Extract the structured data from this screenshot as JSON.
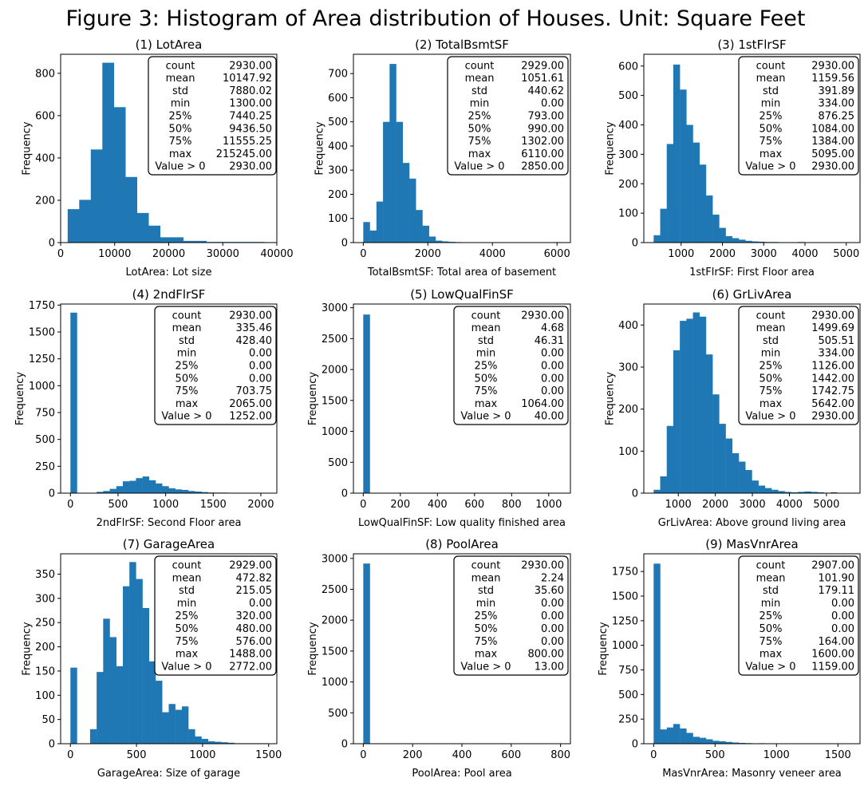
{
  "figure_title": "Figure 3: Histogram of Area distribution of Houses. Unit: Square Feet",
  "chart_data": [
    {
      "type": "bar",
      "title": "(1) LotArea",
      "xlabel": "LotArea: Lot size",
      "ylabel": "Frequency",
      "xlim": [
        0,
        40000
      ],
      "ylim": [
        0,
        890
      ],
      "xticks": [
        0,
        10000,
        20000,
        30000,
        40000
      ],
      "yticks": [
        0,
        200,
        400,
        600,
        800
      ],
      "bin_start": 1300,
      "bin_width": 2140,
      "values": [
        158,
        202,
        440,
        850,
        640,
        310,
        140,
        80,
        25,
        25,
        8,
        8,
        3,
        3,
        3,
        3,
        3,
        2
      ],
      "stats": {
        "labels": [
          "count",
          "mean",
          "std",
          "min",
          "25%",
          "50%",
          "75%",
          "max",
          "Value > 0"
        ],
        "values": [
          "2930.00",
          "10147.92",
          "7880.02",
          "1300.00",
          "7440.25",
          "9436.50",
          "11555.25",
          "215245.00",
          "2930.00"
        ]
      }
    },
    {
      "type": "bar",
      "title": "(2) TotalBsmtSF",
      "xlabel": "TotalBsmtSF: Total area of basement",
      "ylabel": "Frequency",
      "xlim": [
        -305,
        6415
      ],
      "ylim": [
        0,
        780
      ],
      "xticks": [
        0,
        2000,
        4000,
        6000
      ],
      "yticks": [
        0,
        100,
        200,
        300,
        400,
        500,
        600,
        700
      ],
      "bin_start": 0,
      "bin_width": 203.67,
      "values": [
        85,
        50,
        170,
        500,
        740,
        500,
        330,
        265,
        135,
        70,
        25,
        8,
        5,
        3,
        2,
        1,
        1,
        0,
        0,
        0,
        0,
        0,
        0,
        0,
        0,
        1,
        0,
        0,
        0,
        2
      ],
      "stats": {
        "labels": [
          "count",
          "mean",
          "std",
          "min",
          "25%",
          "50%",
          "75%",
          "max",
          "Value > 0"
        ],
        "values": [
          "2929.00",
          "1051.61",
          "440.62",
          "0.00",
          "793.00",
          "990.00",
          "1302.00",
          "6110.00",
          "2850.00"
        ]
      }
    },
    {
      "type": "bar",
      "title": "(3) 1stFlrSF",
      "xlabel": "1stFlrSF: First Floor area",
      "ylabel": "Frequency",
      "xlim": [
        96,
        5333
      ],
      "ylim": [
        0,
        640
      ],
      "xticks": [
        1000,
        2000,
        3000,
        4000,
        5000
      ],
      "yticks": [
        0,
        100,
        200,
        300,
        400,
        500,
        600
      ],
      "bin_start": 334,
      "bin_width": 158.7,
      "values": [
        25,
        115,
        335,
        605,
        520,
        400,
        340,
        265,
        160,
        95,
        50,
        22,
        15,
        10,
        6,
        4,
        3,
        2,
        2,
        1,
        1,
        0,
        2,
        1,
        0,
        0,
        1,
        0,
        0,
        1
      ],
      "stats": {
        "labels": [
          "count",
          "mean",
          "std",
          "min",
          "25%",
          "50%",
          "75%",
          "max",
          "Value > 0"
        ],
        "values": [
          "2930.00",
          "1159.56",
          "391.89",
          "334.00",
          "876.25",
          "1084.00",
          "1384.00",
          "5095.00",
          "2930.00"
        ]
      }
    },
    {
      "type": "bar",
      "title": "(4) 2ndFlrSF",
      "xlabel": "2ndFlrSF: Second Floor area",
      "ylabel": "Frequency",
      "xlim": [
        -103,
        2168
      ],
      "ylim": [
        0,
        1760
      ],
      "xticks": [
        0,
        500,
        1000,
        1500,
        2000
      ],
      "yticks": [
        0,
        250,
        500,
        750,
        1000,
        1250,
        1500,
        1750
      ],
      "bin_start": 0,
      "bin_width": 68.83,
      "values": [
        1680,
        0,
        0,
        3,
        12,
        20,
        40,
        65,
        110,
        115,
        140,
        155,
        120,
        90,
        65,
        45,
        35,
        30,
        20,
        15,
        10,
        6,
        5,
        5,
        4,
        2,
        2,
        2,
        1,
        1
      ],
      "stats": {
        "labels": [
          "count",
          "mean",
          "std",
          "min",
          "25%",
          "50%",
          "75%",
          "max",
          "Value > 0"
        ],
        "values": [
          "2930.00",
          "335.46",
          "428.40",
          "0.00",
          "0.00",
          "0.00",
          "703.75",
          "2065.00",
          "1252.00"
        ]
      }
    },
    {
      "type": "bar",
      "title": "(5) LowQualFinSF",
      "xlabel": "LowQualFinSF: Low quality finished area",
      "ylabel": "Frequency",
      "xlim": [
        -53,
        1117
      ],
      "ylim": [
        0,
        3060
      ],
      "xticks": [
        0,
        200,
        400,
        600,
        800,
        1000
      ],
      "yticks": [
        0,
        500,
        1000,
        1500,
        2000,
        2500,
        3000
      ],
      "bin_start": 0,
      "bin_width": 35.47,
      "values": [
        2890,
        0,
        0,
        3,
        5,
        2,
        1,
        0,
        0,
        0,
        3,
        5,
        4,
        5,
        4,
        2,
        0,
        0,
        0,
        0,
        0,
        0,
        0,
        1,
        0,
        0,
        0,
        0,
        0,
        1
      ],
      "stats": {
        "labels": [
          "count",
          "mean",
          "std",
          "min",
          "25%",
          "50%",
          "75%",
          "max",
          "Value > 0"
        ],
        "values": [
          "2930.00",
          "4.68",
          "46.31",
          "0.00",
          "0.00",
          "0.00",
          "0.00",
          "1064.00",
          "40.00"
        ]
      }
    },
    {
      "type": "bar",
      "title": "(6) GrLivArea",
      "xlabel": "GrLivArea: Above ground living area",
      "ylabel": "Frequency",
      "xlim": [
        69,
        5907
      ],
      "ylim": [
        0,
        450
      ],
      "xticks": [
        1000,
        2000,
        3000,
        4000,
        5000
      ],
      "yticks": [
        0,
        100,
        200,
        300,
        400
      ],
      "bin_start": 334,
      "bin_width": 176.93,
      "values": [
        8,
        40,
        160,
        340,
        410,
        415,
        430,
        420,
        330,
        235,
        165,
        130,
        95,
        75,
        55,
        30,
        18,
        12,
        8,
        5,
        3,
        2,
        3,
        4,
        3,
        2,
        1,
        2,
        0,
        1
      ],
      "stats": {
        "labels": [
          "count",
          "mean",
          "std",
          "min",
          "25%",
          "50%",
          "75%",
          "max",
          "Value > 0"
        ],
        "values": [
          "2930.00",
          "1499.69",
          "505.51",
          "334.00",
          "1126.00",
          "1442.00",
          "1742.75",
          "5642.00",
          "2930.00"
        ]
      }
    },
    {
      "type": "bar",
      "title": "(7) GarageArea",
      "xlabel": "GarageArea: Size of garage",
      "ylabel": "Frequency",
      "xlim": [
        -74,
        1562
      ],
      "ylim": [
        0,
        392
      ],
      "xticks": [
        0,
        500,
        1000,
        1500
      ],
      "yticks": [
        0,
        50,
        100,
        150,
        200,
        250,
        300,
        350
      ],
      "bin_start": 0,
      "bin_width": 49.6,
      "values": [
        157,
        0,
        0,
        30,
        148,
        258,
        220,
        160,
        325,
        375,
        340,
        280,
        170,
        130,
        65,
        82,
        70,
        77,
        30,
        15,
        10,
        5,
        4,
        3,
        2,
        1,
        1,
        1,
        1,
        1
      ],
      "stats": {
        "labels": [
          "count",
          "mean",
          "std",
          "min",
          "25%",
          "50%",
          "75%",
          "max",
          "Value > 0"
        ],
        "values": [
          "2929.00",
          "472.82",
          "215.05",
          "0.00",
          "320.00",
          "480.00",
          "576.00",
          "1488.00",
          "2772.00"
        ]
      }
    },
    {
      "type": "bar",
      "title": "(8) PoolArea",
      "xlabel": "PoolArea: Pool area",
      "ylabel": "Frequency",
      "xlim": [
        -40,
        840
      ],
      "ylim": [
        0,
        3075
      ],
      "xticks": [
        0,
        200,
        400,
        600,
        800
      ],
      "yticks": [
        0,
        500,
        1000,
        1500,
        2000,
        2500,
        3000
      ],
      "bin_start": 0,
      "bin_width": 26.67,
      "values": [
        2917,
        0,
        0,
        0,
        0,
        0,
        0,
        0,
        0,
        0,
        0,
        0,
        0,
        0,
        1,
        2,
        1,
        1,
        2,
        2,
        1,
        1,
        0,
        0,
        1,
        0,
        0,
        0,
        0,
        1
      ],
      "stats": {
        "labels": [
          "count",
          "mean",
          "std",
          "min",
          "25%",
          "50%",
          "75%",
          "max",
          "Value > 0"
        ],
        "values": [
          "2930.00",
          "2.24",
          "35.60",
          "0.00",
          "0.00",
          "0.00",
          "0.00",
          "800.00",
          "13.00"
        ]
      }
    },
    {
      "type": "bar",
      "title": "(9) MasVnrArea",
      "xlabel": "MasVnrArea: Masonry veneer area",
      "ylabel": "Frequency",
      "xlim": [
        -80,
        1680
      ],
      "ylim": [
        0,
        1930
      ],
      "xticks": [
        0,
        500,
        1000,
        1500
      ],
      "yticks": [
        0,
        250,
        500,
        750,
        1000,
        1250,
        1500,
        1750
      ],
      "bin_start": 0,
      "bin_width": 53.33,
      "values": [
        1830,
        145,
        165,
        200,
        155,
        110,
        70,
        60,
        45,
        30,
        25,
        18,
        12,
        8,
        6,
        4,
        5,
        3,
        3,
        2,
        2,
        2,
        1,
        1,
        1,
        1,
        0,
        0,
        0,
        1
      ],
      "stats": {
        "labels": [
          "count",
          "mean",
          "std",
          "min",
          "25%",
          "50%",
          "75%",
          "max",
          "Value > 0"
        ],
        "values": [
          "2907.00",
          "101.90",
          "179.11",
          "0.00",
          "0.00",
          "0.00",
          "164.00",
          "1600.00",
          "1159.00"
        ]
      }
    }
  ]
}
